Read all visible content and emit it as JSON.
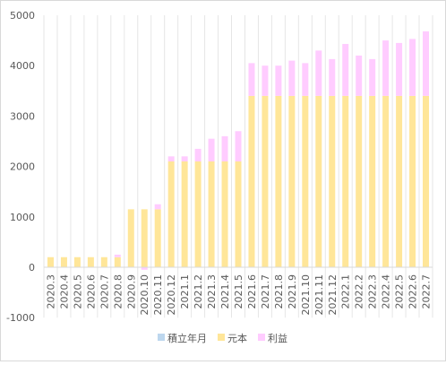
{
  "chart_data": {
    "type": "bar",
    "stacked": true,
    "title": "",
    "xlabel": "",
    "ylabel": "",
    "ylim": [
      -1000,
      5000
    ],
    "yticks": [
      -1000,
      0,
      1000,
      2000,
      3000,
      4000,
      5000
    ],
    "grid": "vertical",
    "legend_position": "bottom",
    "categories": [
      "2020.3",
      "2020.4",
      "2020.5",
      "2020.6",
      "2020.7",
      "2020.8",
      "2020.9",
      "2020.10",
      "2020.11",
      "2020.12",
      "2021.1",
      "2021.2",
      "2021.3",
      "2021.4",
      "2021.5",
      "2021.6",
      "2021.7",
      "2021.8",
      "2021.9",
      "2021.10",
      "2021.11",
      "2021.12",
      "2022.1",
      "2022.2",
      "2022.3",
      "2022.4",
      "2022.5",
      "2022.6",
      "2022.7"
    ],
    "series": [
      {
        "name": "積立年月",
        "color": "#bdd7ee",
        "values": [
          0,
          0,
          0,
          0,
          0,
          0,
          0,
          0,
          0,
          0,
          0,
          0,
          0,
          0,
          0,
          0,
          0,
          0,
          0,
          0,
          0,
          0,
          0,
          0,
          0,
          0,
          0,
          0,
          0
        ]
      },
      {
        "name": "元本",
        "color": "#ffe699",
        "values": [
          200,
          200,
          200,
          200,
          200,
          200,
          1150,
          1150,
          1150,
          2100,
          2100,
          2100,
          2100,
          2100,
          2100,
          3400,
          3400,
          3400,
          3400,
          3400,
          3400,
          3400,
          3400,
          3400,
          3400,
          3400,
          3400,
          3400,
          3400
        ]
      },
      {
        "name": "利益",
        "color": "#ffccff",
        "values": [
          0,
          0,
          0,
          0,
          0,
          50,
          0,
          -50,
          100,
          100,
          100,
          250,
          450,
          500,
          600,
          650,
          600,
          600,
          700,
          650,
          900,
          730,
          1030,
          800,
          730,
          1100,
          1050,
          1130,
          1280
        ]
      }
    ]
  }
}
